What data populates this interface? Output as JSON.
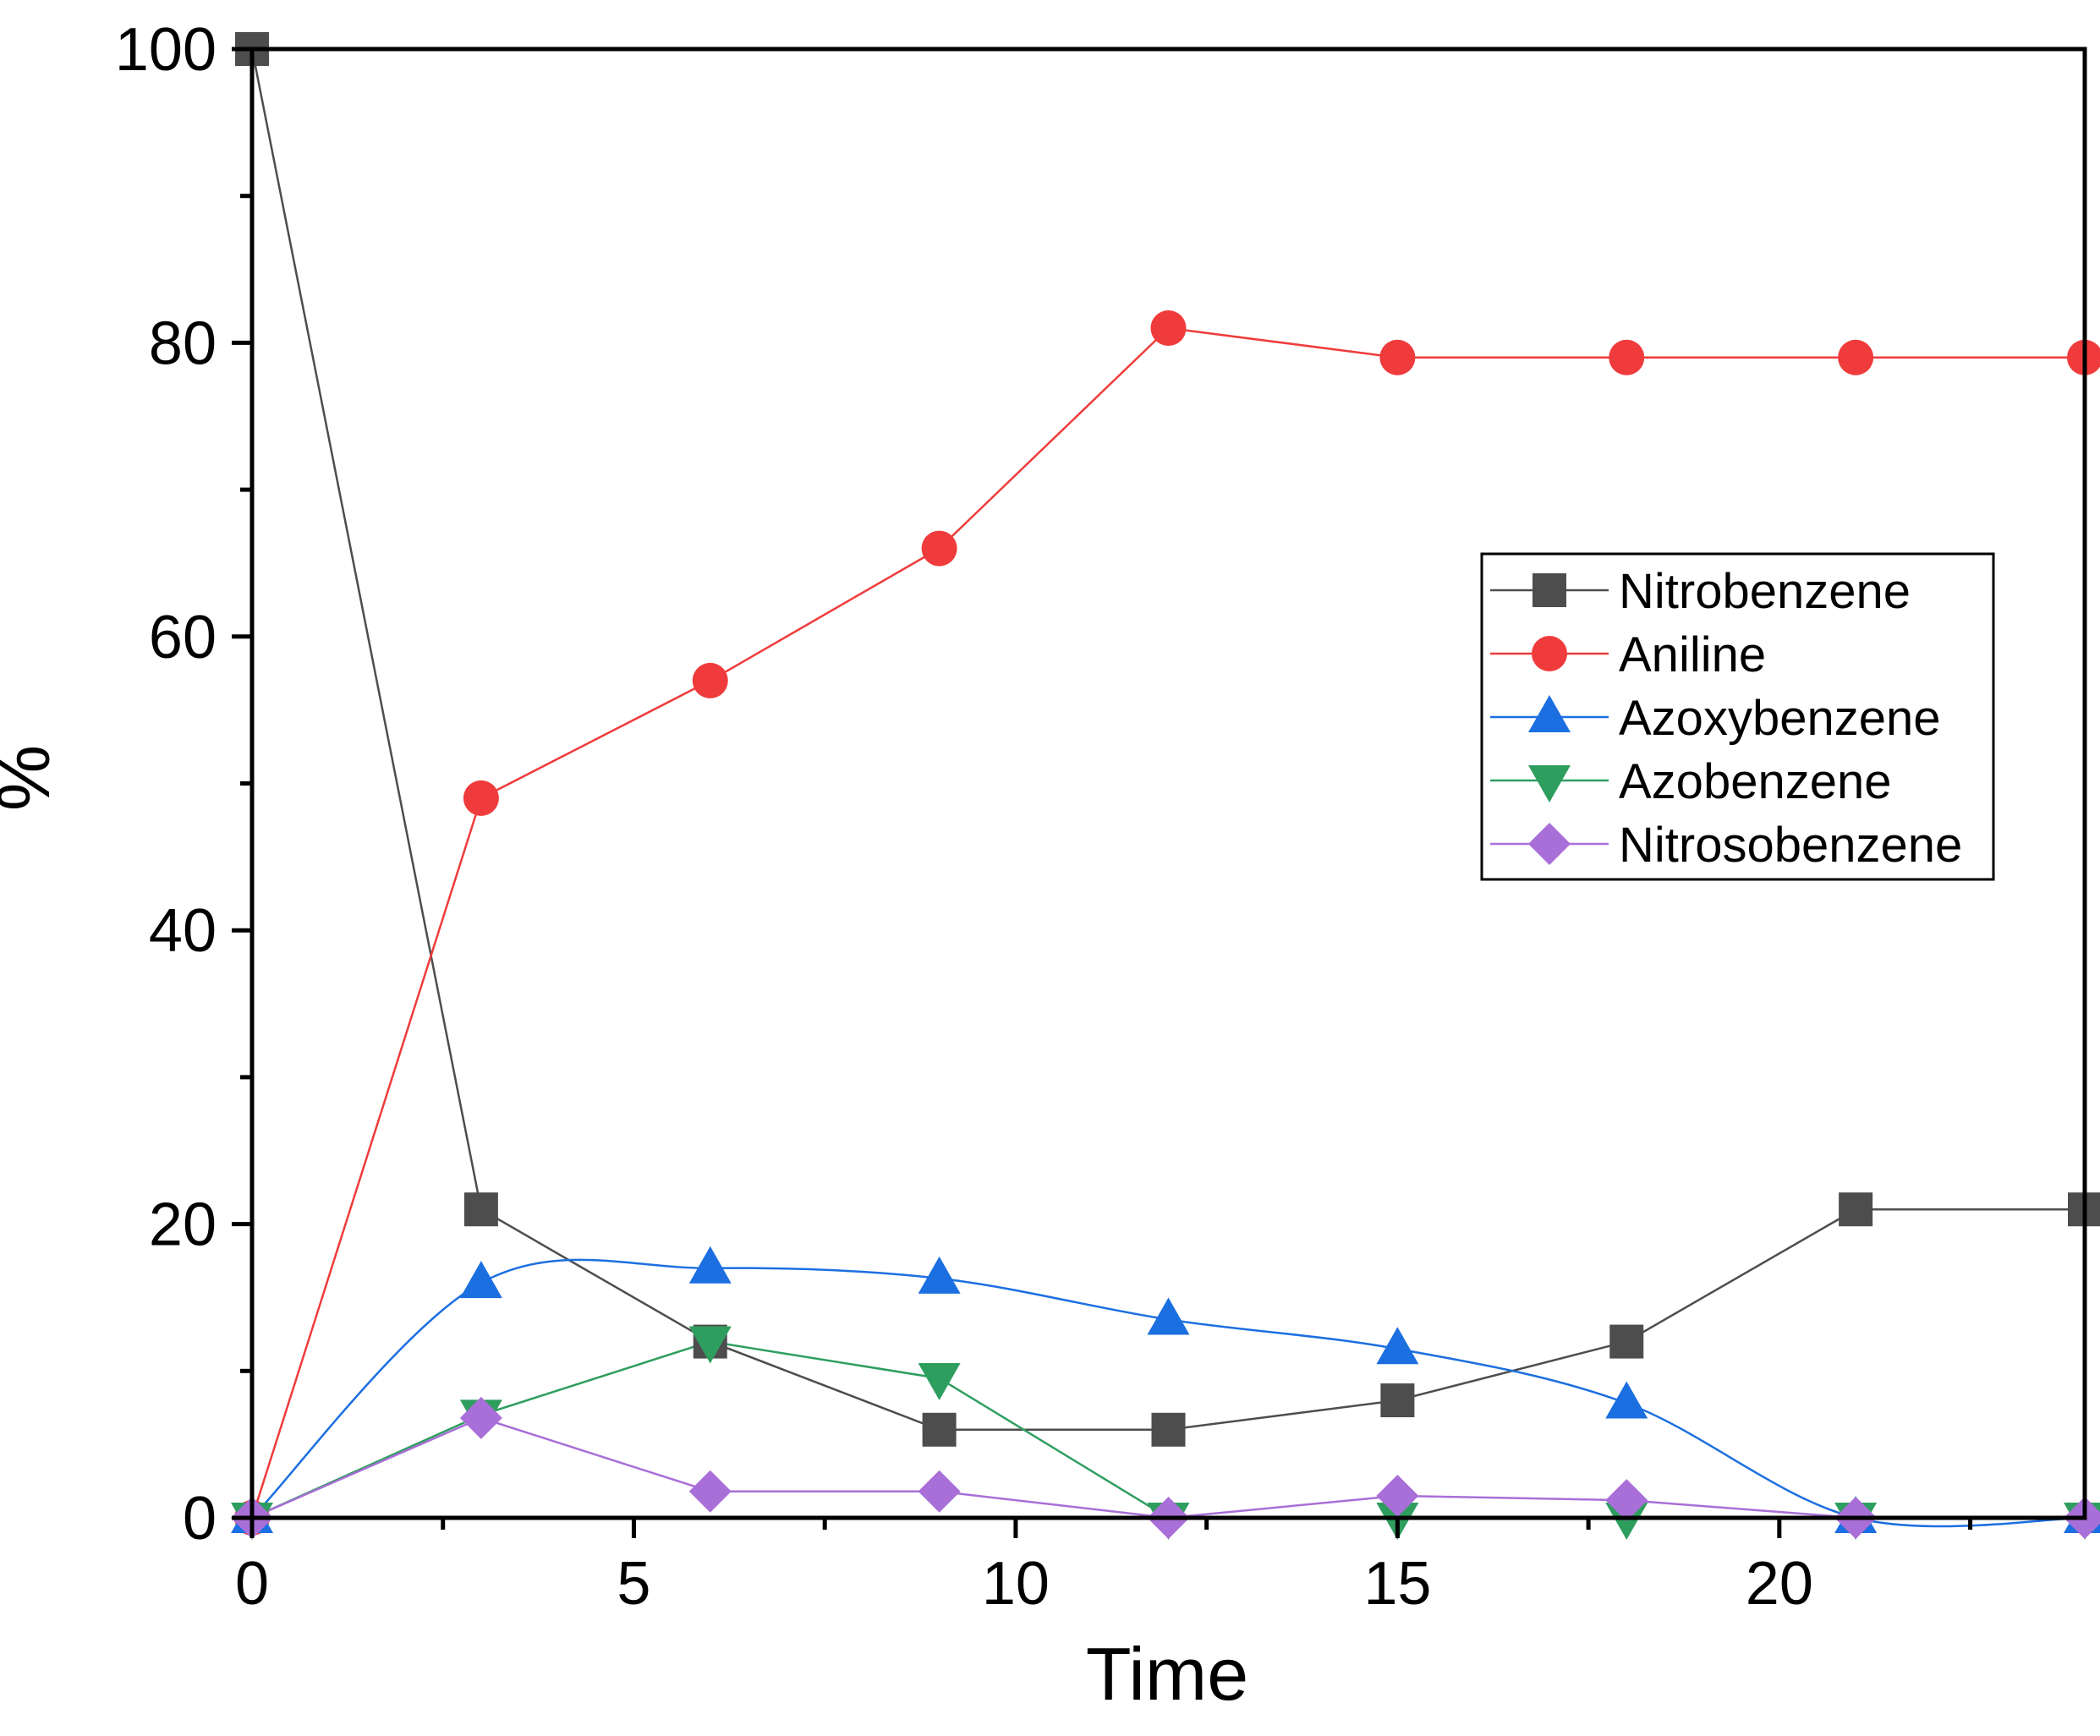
{
  "chart_data": {
    "type": "line",
    "title": "",
    "xlabel": "Time",
    "ylabel": "%",
    "xlim": [
      0,
      24
    ],
    "ylim": [
      0,
      100
    ],
    "xticks": [
      0,
      5,
      10,
      15,
      20
    ],
    "yticks": [
      0,
      20,
      40,
      60,
      80,
      100
    ],
    "x_minor_step": 2.5,
    "y_minor_step": 10,
    "legend_position": "center-right",
    "x": [
      0,
      3,
      6,
      9,
      12,
      15,
      18,
      21,
      24
    ],
    "series": [
      {
        "name": "Nitrobenzene",
        "color": "#4d4d4d",
        "marker": "square",
        "smooth": false,
        "values": [
          100,
          21,
          12,
          6,
          6,
          8,
          12,
          21,
          21
        ]
      },
      {
        "name": "Aniline",
        "color": "#ef3b3b",
        "marker": "circle",
        "smooth": false,
        "values": [
          0,
          49,
          57,
          66,
          81,
          79,
          79,
          79,
          79
        ]
      },
      {
        "name": "Azoxybenzene",
        "color": "#1c6fe0",
        "marker": "triangle-up",
        "smooth": true,
        "values": [
          0,
          16,
          17,
          16.3,
          13.5,
          11.5,
          7.8,
          0,
          0
        ]
      },
      {
        "name": "Azobenzene",
        "color": "#2e9e5e",
        "marker": "triangle-down",
        "smooth": false,
        "values": [
          0,
          7,
          12,
          9.5,
          0,
          0,
          0,
          0,
          0
        ]
      },
      {
        "name": "Nitrosobenzene",
        "color": "#a96fd8",
        "marker": "diamond",
        "smooth": false,
        "values": [
          0,
          6.8,
          1.8,
          1.8,
          0,
          1.5,
          1.2,
          0,
          0
        ]
      }
    ]
  }
}
